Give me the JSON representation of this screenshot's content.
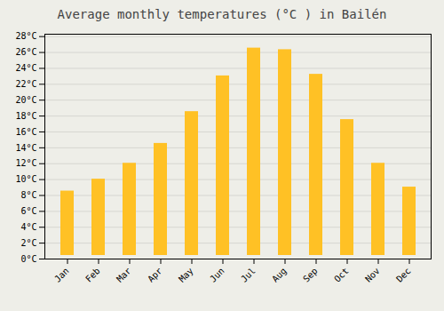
{
  "chart_data": {
    "type": "bar",
    "title": "Average monthly temperatures (°C ) in Bailén",
    "categories": [
      "Jan",
      "Feb",
      "Mar",
      "Apr",
      "May",
      "Jun",
      "Jul",
      "Aug",
      "Sep",
      "Oct",
      "Nov",
      "Dec"
    ],
    "values": [
      9.0,
      10.5,
      12.5,
      15.0,
      19.0,
      23.5,
      27.0,
      26.8,
      23.7,
      18.0,
      12.5,
      9.5
    ],
    "color": "#FFC125",
    "ylim": [
      0,
      28.3
    ],
    "yticks": [
      {
        "value": 0,
        "label": "0°C"
      },
      {
        "value": 2,
        "label": "2°C"
      },
      {
        "value": 4,
        "label": "4°C"
      },
      {
        "value": 6,
        "label": "6°C"
      },
      {
        "value": 8,
        "label": "8°C"
      },
      {
        "value": 10,
        "label": "10°C"
      },
      {
        "value": 12,
        "label": "12°C"
      },
      {
        "value": 14,
        "label": "14°C"
      },
      {
        "value": 16,
        "label": "16°C"
      },
      {
        "value": 18,
        "label": "18°C"
      },
      {
        "value": 20,
        "label": "20°C"
      },
      {
        "value": 22,
        "label": "22°C"
      },
      {
        "value": 24,
        "label": "24°C"
      },
      {
        "value": 26,
        "label": "26°C"
      },
      {
        "value": 28,
        "label": "28°C"
      }
    ],
    "grid": true
  }
}
